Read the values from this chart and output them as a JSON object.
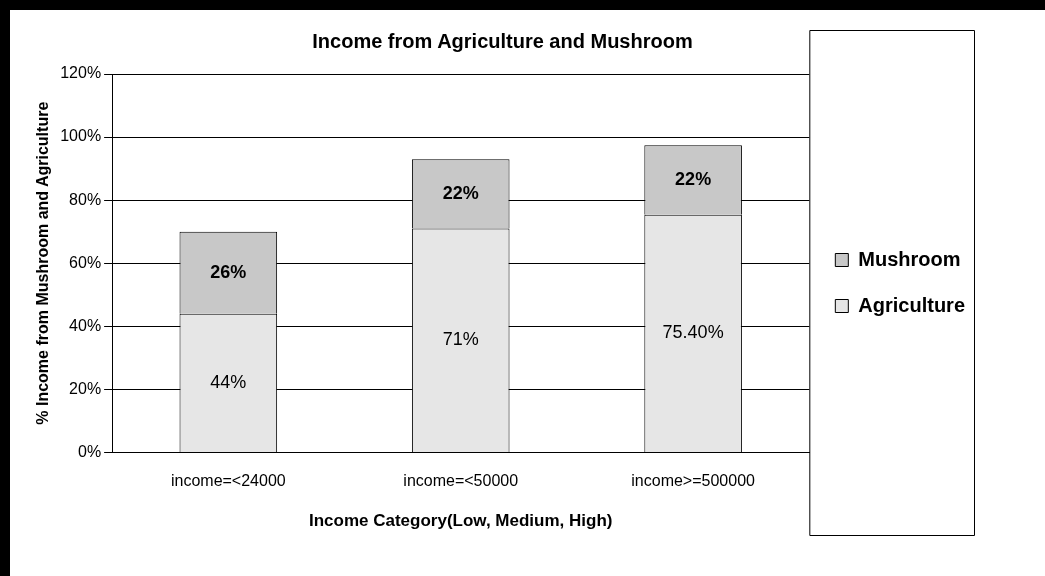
{
  "chart_data": {
    "type": "bar",
    "title": "Income from Agriculture and Mushroom",
    "xlabel": "Income Category(Low, Medium, High)",
    "ylabel": "% Income from Mushroom and Agriculture",
    "categories": [
      "income=<24000",
      "income=<50000",
      "income>=500000"
    ],
    "stacked": true,
    "series": [
      {
        "name": "Agriculture",
        "color": "#e6e6e6",
        "values": [
          44,
          71,
          75.4
        ],
        "value_labels": [
          "44%",
          "71%",
          "75.40%"
        ]
      },
      {
        "name": "Mushroom",
        "color": "#c8c8c8",
        "values": [
          26,
          22,
          22
        ],
        "value_labels": [
          "26%",
          "22%",
          "22%"
        ]
      }
    ],
    "ylim": [
      0,
      120
    ],
    "yticks": [
      {
        "value": 0,
        "label": "0%"
      },
      {
        "value": 20,
        "label": "20%"
      },
      {
        "value": 40,
        "label": "40%"
      },
      {
        "value": 60,
        "label": "60%"
      },
      {
        "value": 80,
        "label": "80%"
      },
      {
        "value": 100,
        "label": "100%"
      },
      {
        "value": 120,
        "label": "120%"
      }
    ],
    "grid": "y",
    "legend": "right"
  }
}
